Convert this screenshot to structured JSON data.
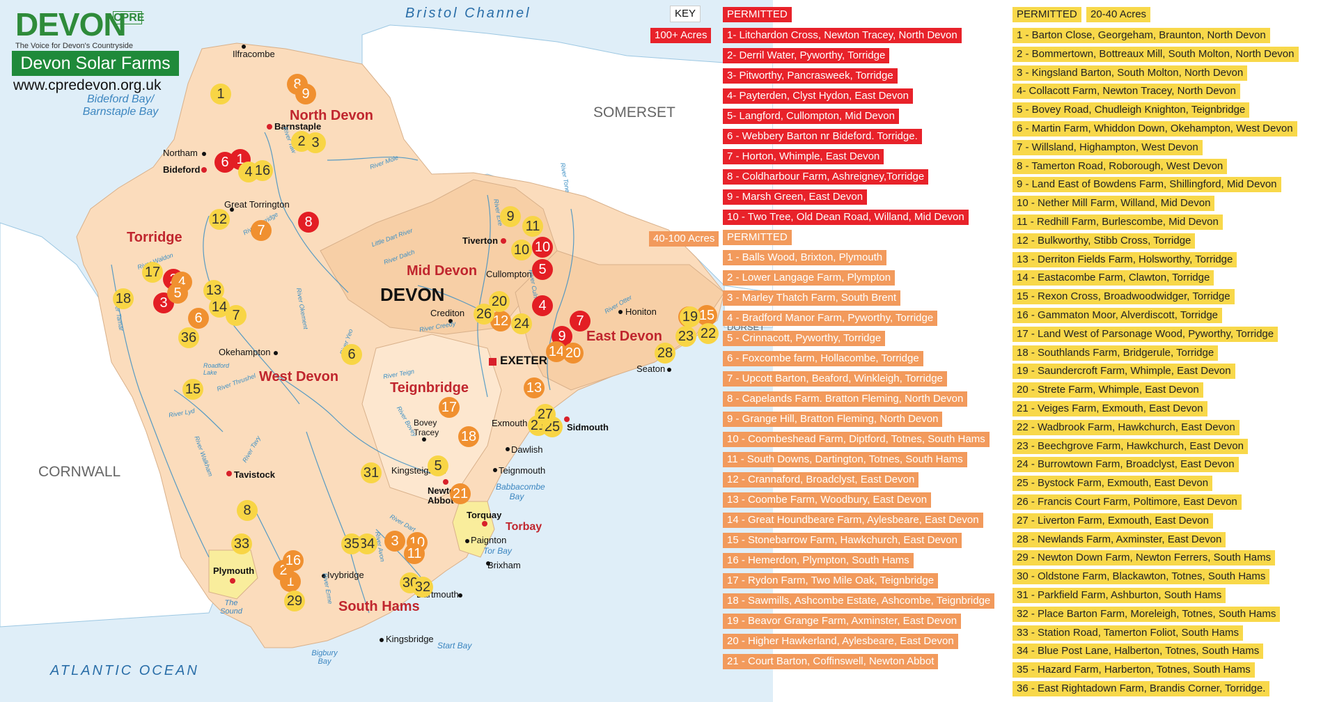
{
  "logo": {
    "word": "DEVON",
    "cpre": "CPRE",
    "tagline": "The Voice for Devon's Countryside"
  },
  "title": "Devon Solar Farms",
  "website": "www.cpredevon.org.uk",
  "map_labels": {
    "seas": [
      "Bristol Channel",
      "ATLANTIC OCEAN"
    ],
    "bays": [
      "Bideford Bay/ Barnstaple Bay",
      "Babbacombe Bay",
      "Tor Bay",
      "Start Bay",
      "Bigbury Bay",
      "The Sound"
    ],
    "counties": [
      "SOMERSET",
      "CORNWALL",
      "DORSET",
      "DEVON"
    ],
    "districts": [
      "North Devon",
      "Torridge",
      "Mid Devon",
      "West Devon",
      "Teignbridge",
      "East Devon",
      "South Hams",
      "Torbay"
    ],
    "towns": [
      "Ilfracombe",
      "Barnstaple",
      "Northam",
      "Bideford",
      "Great Torrington",
      "Tiverton",
      "Cullompton",
      "Crediton",
      "Honiton",
      "Okehampton",
      "Exmouth",
      "Sidmouth",
      "Seaton",
      "Bovey Tracey",
      "Dawlish",
      "Teignmouth",
      "Kingsteignton",
      "Newton Abbot",
      "Torquay",
      "Paignton",
      "Brixham",
      "Tavistock",
      "Plymouth",
      "Ivybridge",
      "Dartmouth",
      "Kingsbridge",
      "EXETER"
    ],
    "rivers": [
      "River Taw",
      "River Mole",
      "River Torridge",
      "River Tone",
      "River Exe",
      "Little Dart River",
      "River Dalch",
      "River Waldon",
      "River Tamar",
      "River Okement",
      "River Yeo",
      "River Teign",
      "River Otter",
      "River Lyd",
      "River Thrushel",
      "Roadford Lake",
      "River Culm",
      "River Bovey",
      "River Tavy",
      "River Walkham",
      "River Avon",
      "River Dart",
      "River Erme",
      "River Creedy"
    ]
  },
  "markers": {
    "large": [
      "1",
      "2",
      "3",
      "4",
      "5",
      "6",
      "7",
      "8",
      "9",
      "10"
    ],
    "medium": [
      "1",
      "2",
      "3",
      "4",
      "5",
      "6",
      "7",
      "8",
      "9",
      "10",
      "11",
      "12",
      "13",
      "14",
      "15",
      "16",
      "17",
      "18",
      "19",
      "20",
      "21"
    ],
    "small": [
      "1",
      "2",
      "3",
      "4",
      "5",
      "6",
      "7",
      "8",
      "9",
      "10",
      "11",
      "12",
      "13",
      "14",
      "15",
      "16",
      "17",
      "18",
      "19",
      "20",
      "21",
      "22",
      "23",
      "24",
      "25",
      "26",
      "27",
      "28",
      "29",
      "30",
      "31",
      "32",
      "33",
      "34",
      "35",
      "36"
    ]
  },
  "legend": {
    "key_label": "KEY",
    "large": {
      "size_label": "100+ Acres",
      "status": "PERMITTED",
      "colour": "#e8222a",
      "items": [
        "1- Litchardon Cross, Newton Tracey, North Devon",
        "2- Derril Water, Pyworthy, Torridge",
        "3- Pitworthy, Pancrasweek, Torridge",
        "4- Payterden, Clyst Hydon, East Devon",
        "5- Langford, Cullompton, Mid Devon",
        "6 - Webbery Barton nr Bideford. Torridge.",
        "7 - Horton, Whimple, East Devon",
        "8 - Coldharbour Farm, Ashreigney,Torridge",
        "9 - Marsh Green, East Devon",
        "10 - Two Tree, Old Dean Road, Willand, Mid Devon"
      ]
    },
    "medium": {
      "size_label": "40-100 Acres",
      "status": "PERMITTED",
      "colour": "#f29a5c",
      "items": [
        "1 - Balls Wood, Brixton, Plymouth",
        "2 - Lower Langage Farm, Plympton",
        "3 - Marley Thatch Farm, South Brent",
        "4 - Bradford Manor Farm, Pyworthy, Torridge",
        "5 - Crinnacott, Pyworthy, Torridge",
        "6 - Foxcombe farm, Hollacombe, Torridge",
        "7 - Upcott Barton, Beaford, Winkleigh, Torridge",
        "8 - Capelands Farm. Bratton Fleming, North Devon",
        "9 - Grange Hill, Bratton Fleming, North Devon",
        "10 - Coombeshead Farm, Diptford, Totnes, South Hams",
        "11 - South Downs, Dartington, Totnes, South Hams",
        "12 - Crannaford, Broadclyst, East Devon",
        "13 - Coombe Farm, Woodbury, East Devon",
        "14 - Great Houndbeare Farm, Aylesbeare, East Devon",
        "15 - Stonebarrow Farm, Hawkchurch, East Devon",
        "16 - Hemerdon, Plympton, South Hams",
        "17 - Rydon Farm, Two Mile Oak, Teignbridge",
        "18 - Sawmills, Ashcombe Estate, Ashcombe, Teignbridge",
        "19 - Beavor Grange Farm, Axminster, East Devon",
        "20 - Higher Hawkerland, Aylesbeare, East Devon",
        "21 - Court Barton, Coffinswell, Newton Abbot"
      ]
    },
    "small": {
      "size_label": "20-40 Acres",
      "status": "PERMITTED",
      "colour": "#f8d84a",
      "items": [
        "1 - Barton Close, Georgeham, Braunton, North Devon",
        "2 - Bommertown, Bottreaux Mill, South Molton, North Devon",
        "3 - Kingsland Barton, South Molton, North Devon",
        "4- Collacott Farm, Newton Tracey, North Devon",
        "5 - Bovey Road, Chudleigh Knighton, Teignbridge",
        "6 - Martin Farm, Whiddon Down, Okehampton, West Devon",
        "7 - Willsland, Highampton, West Devon",
        "8 - Tamerton Road, Roborough, West Devon",
        "9 - Land East of Bowdens Farm, Shillingford, Mid Devon",
        "10 - Nether Mill Farm, Willand, Mid Devon",
        "11 - Redhill Farm, Burlescombe, Mid Devon",
        "12 - Bulkworthy, Stibb Cross, Torridge",
        "13 - Derriton Fields Farm, Holsworthy, Torridge",
        "14 - Eastacombe Farm, Clawton, Torridge",
        "15 - Rexon Cross, Broadwoodwidger, Torridge",
        "16 - Gammaton Moor, Alverdiscott, Torridge",
        "17 - Land West of Parsonage Wood, Pyworthy, Torridge",
        "18 - Southlands Farm, Bridgerule, Torridge",
        "19 - Saundercroft Farm, Whimple, East Devon",
        "20 - Strete Farm, Whimple, East Devon",
        "21 - Veiges Farm, Exmouth, East Devon",
        "22 - Wadbrook Farm, Hawkchurch, East Devon",
        "23 - Beechgrove Farm, Hawkchurch, East Devon",
        "24 - Burrowtown Farm, Broadclyst, East Devon",
        "25 - Bystock Farm, Exmouth, East Devon",
        "26 - Francis Court Farm, Poltimore, East Devon",
        "27 - Liverton Farm, Exmouth, East Devon",
        "28 - Newlands Farm, Axminster, East Devon",
        "29 - Newton Down Farm, Newton Ferrers, South Hams",
        "30 - Oldstone Farm, Blackawton, Totnes, South Hams",
        "31 - Parkfield Farm, Ashburton, South Hams",
        "32 - Place Barton Farm, Moreleigh, Totnes, South Hams",
        "33 - Station Road, Tamerton Foliot, South Hams",
        "34 - Blue Post Lane, Halberton, Totnes, South Hams",
        "35 - Hazard Farm, Harberton, Totnes, South Hams",
        "36 - East Rightadown Farm, Brandis Corner, Torridge."
      ]
    }
  }
}
